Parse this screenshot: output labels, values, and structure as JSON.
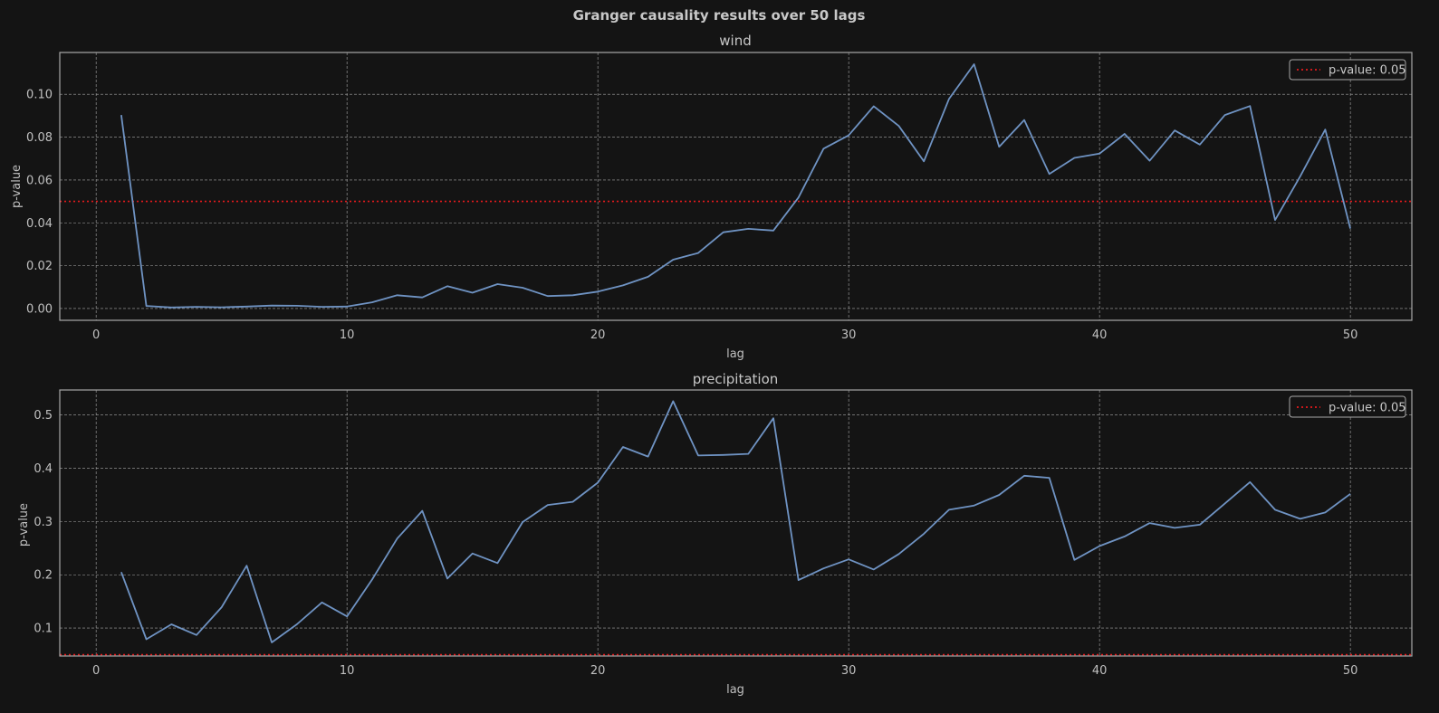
{
  "suptitle": "Granger causality results over 50 lags",
  "colors": {
    "background": "#141414",
    "line": "#6f93c3",
    "threshold": "#e41a1c",
    "grid": "#a8a8a8",
    "spine": "#a8a8a8",
    "text": "#c8c8c8"
  },
  "chart_data": [
    {
      "type": "line",
      "title": "wind",
      "xlabel": "lag",
      "ylabel": "p-value",
      "xlim": [
        -1.45,
        52.45
      ],
      "ylim": [
        -0.0055,
        0.1195
      ],
      "xticks": [
        0,
        10,
        20,
        30,
        40,
        50
      ],
      "yticks": [
        0.0,
        0.02,
        0.04,
        0.06,
        0.08,
        0.1
      ],
      "ytick_labels": [
        "0.00",
        "0.02",
        "0.04",
        "0.06",
        "0.08",
        "0.10"
      ],
      "grid": true,
      "legend_position": "top-right",
      "threshold": {
        "value": 0.05,
        "label": "p-value: 0.05",
        "style": "dotted"
      },
      "series": [
        {
          "x": [
            1,
            2,
            3,
            4,
            5,
            6,
            7,
            8,
            9,
            10,
            11,
            12,
            13,
            14,
            15,
            16,
            17,
            18,
            19,
            20,
            21,
            22,
            23,
            24,
            25,
            26,
            27,
            28,
            29,
            30,
            31,
            32,
            33,
            34,
            35,
            36,
            37,
            38,
            39,
            40,
            41,
            42,
            43,
            44,
            45,
            46,
            47,
            48,
            49,
            50
          ],
          "values": [
            0.0903,
            0.0012,
            0.0005,
            0.0008,
            0.0006,
            0.0009,
            0.0014,
            0.0013,
            0.0008,
            0.0009,
            0.0029,
            0.0062,
            0.0052,
            0.0104,
            0.0074,
            0.0114,
            0.0097,
            0.0058,
            0.0062,
            0.0079,
            0.0108,
            0.0148,
            0.0228,
            0.0259,
            0.0356,
            0.0372,
            0.0364,
            0.0518,
            0.0746,
            0.0808,
            0.0944,
            0.0852,
            0.0687,
            0.0978,
            0.114,
            0.0755,
            0.088,
            0.0628,
            0.0703,
            0.0723,
            0.0815,
            0.069,
            0.0831,
            0.0765,
            0.0903,
            0.0945,
            0.0413,
            0.0617,
            0.0835,
            0.0373
          ]
        }
      ]
    },
    {
      "type": "line",
      "title": "precipitation",
      "xlabel": "lag",
      "ylabel": "p-value",
      "xlim": [
        -1.45,
        52.45
      ],
      "ylim": [
        0.0475,
        0.547
      ],
      "xticks": [
        0,
        10,
        20,
        30,
        40,
        50
      ],
      "yticks": [
        0.1,
        0.2,
        0.3,
        0.4,
        0.5
      ],
      "ytick_labels": [
        "0.1",
        "0.2",
        "0.3",
        "0.4",
        "0.5"
      ],
      "grid": true,
      "legend_position": "top-right",
      "threshold": {
        "value": 0.05,
        "label": "p-value: 0.05",
        "style": "dotted"
      },
      "series": [
        {
          "x": [
            1,
            2,
            3,
            4,
            5,
            6,
            7,
            8,
            9,
            10,
            11,
            12,
            13,
            14,
            15,
            16,
            17,
            18,
            19,
            20,
            21,
            22,
            23,
            24,
            25,
            26,
            27,
            28,
            29,
            30,
            31,
            32,
            33,
            34,
            35,
            36,
            37,
            38,
            39,
            40,
            41,
            42,
            43,
            44,
            45,
            46,
            47,
            48,
            49,
            50
          ],
          "values": [
            0.205,
            0.079,
            0.107,
            0.087,
            0.139,
            0.217,
            0.073,
            0.107,
            0.148,
            0.122,
            0.191,
            0.268,
            0.32,
            0.193,
            0.24,
            0.222,
            0.299,
            0.331,
            0.337,
            0.373,
            0.44,
            0.422,
            0.526,
            0.424,
            0.425,
            0.427,
            0.494,
            0.19,
            0.212,
            0.229,
            0.21,
            0.239,
            0.277,
            0.322,
            0.33,
            0.35,
            0.386,
            0.382,
            0.228,
            0.254,
            0.272,
            0.297,
            0.288,
            0.294,
            0.334,
            0.374,
            0.322,
            0.305,
            0.317,
            0.352
          ]
        }
      ]
    }
  ]
}
